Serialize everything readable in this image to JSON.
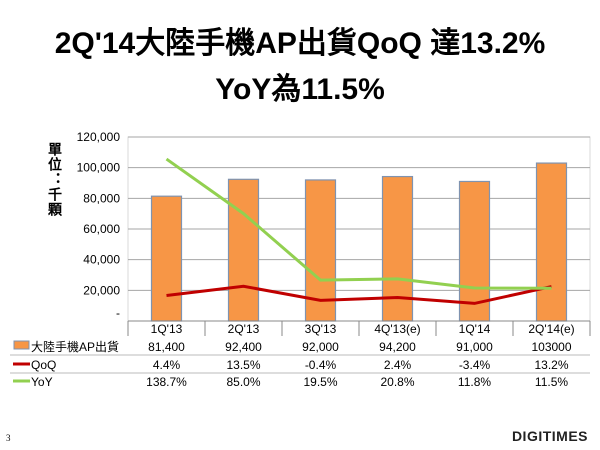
{
  "title_line1": "2Q'14大陸手機AP出貨QoQ 達13.2%",
  "title_line2": "YoY為11.5%",
  "page_number": "3",
  "logo": "DIGITIMES",
  "chart_data": {
    "type": "bar",
    "ylabel": "單位：千顆",
    "ylim": [
      0,
      120000
    ],
    "y2lim": [
      -20.7,
      160.4
    ],
    "yticks": [
      "-",
      "20,000",
      "40,000",
      "60,000",
      "80,000",
      "100,000",
      "120,000"
    ],
    "grid": true,
    "categories": [
      "1Q'13",
      "2Q'13",
      "3Q'13",
      "4Q'13(e)",
      "1Q'14",
      "2Q'14(e)"
    ],
    "series": [
      {
        "name": "大陸手機AP出貨",
        "type": "bar",
        "color": "#F79646",
        "values": [
          81400,
          92400,
          92000,
          94200,
          91000,
          103000
        ],
        "labels": [
          "81,400",
          "92,400",
          "92,000",
          "94,200",
          "91,000",
          "103000"
        ]
      },
      {
        "name": "QoQ",
        "type": "line",
        "axis": "secondary",
        "color": "#C00000",
        "values": [
          4.4,
          13.5,
          -0.4,
          2.4,
          -3.4,
          13.2
        ],
        "labels": [
          "4.4%",
          "13.5%",
          "-0.4%",
          "2.4%",
          "-3.4%",
          "13.2%"
        ]
      },
      {
        "name": "YoY",
        "type": "line",
        "axis": "secondary",
        "color": "#92D050",
        "values": [
          138.7,
          85.0,
          19.5,
          20.8,
          11.8,
          11.5
        ],
        "labels": [
          "138.7%",
          "85.0%",
          "19.5%",
          "20.8%",
          "11.8%",
          "11.5%"
        ]
      }
    ],
    "legend": "data-table"
  }
}
